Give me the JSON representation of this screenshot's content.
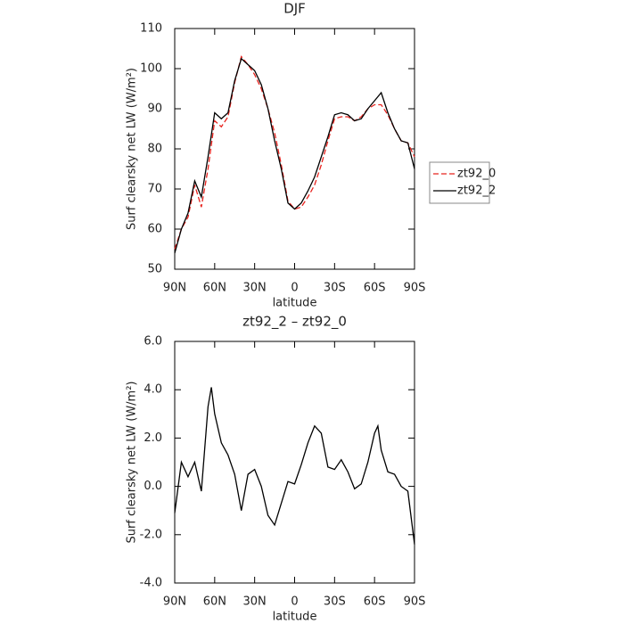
{
  "chart_data": [
    {
      "type": "line",
      "title": "DJF",
      "xlabel": "latitude",
      "ylabel": "Surf clearsky net LW (W/m²)",
      "x": [
        90,
        85,
        80,
        75,
        70,
        65,
        60,
        55,
        50,
        45,
        40,
        35,
        30,
        25,
        20,
        15,
        10,
        5,
        0,
        -5,
        -10,
        -15,
        -20,
        -25,
        -30,
        -35,
        -40,
        -45,
        -50,
        -55,
        -60,
        -65,
        -70,
        -75,
        -80,
        -85,
        -90
      ],
      "series": [
        {
          "name": "zt92_0",
          "color": "#e8241f",
          "linestyle": "dashed",
          "values": [
            55,
            60,
            63,
            71,
            65.5,
            75,
            87,
            85.5,
            88,
            96.5,
            103,
            101,
            98.5,
            95,
            90,
            84,
            76,
            67,
            65,
            65.5,
            68,
            71,
            76,
            82,
            87.5,
            88,
            88,
            87,
            88,
            90,
            91,
            91,
            88.5,
            85,
            82,
            81.5,
            78
          ]
        },
        {
          "name": "zt92_2",
          "color": "#000000",
          "linestyle": "solid",
          "values": [
            54,
            60,
            64,
            72,
            68,
            78,
            89,
            87.5,
            89,
            97,
            102.5,
            101,
            99.5,
            96,
            90,
            82,
            75,
            66.5,
            65,
            66.5,
            69.5,
            73,
            78,
            83,
            88.5,
            89,
            88.5,
            87,
            87.5,
            90,
            92,
            94,
            89,
            85,
            82,
            81.5,
            75
          ]
        }
      ],
      "xlim": [
        90,
        -90
      ],
      "xticks": [
        {
          "value": 90,
          "label": "90N"
        },
        {
          "value": 60,
          "label": "60N"
        },
        {
          "value": 30,
          "label": "30N"
        },
        0,
        {
          "value": -30,
          "label": "30S"
        },
        {
          "value": -60,
          "label": "60S"
        },
        {
          "value": -90,
          "label": "90S"
        }
      ],
      "ylim": [
        50,
        110
      ],
      "yticks": [
        50,
        60,
        70,
        80,
        90,
        100,
        110
      ],
      "legend": "outside-right"
    },
    {
      "type": "line",
      "title": "zt92_2 – zt92_0",
      "xlabel": "latitude",
      "ylabel": "Surf clearsky net LW (W/m²)",
      "x": [
        90,
        85,
        80,
        75,
        70,
        65,
        62.5,
        60,
        55,
        50,
        45,
        40,
        35,
        30,
        25,
        20,
        15,
        10,
        5,
        0,
        -5,
        -10,
        -15,
        -20,
        -25,
        -30,
        -35,
        -40,
        -45,
        -50,
        -55,
        -60,
        -62.5,
        -65,
        -70,
        -75,
        -80,
        -85,
        -90
      ],
      "values": [
        -1.1,
        1.0,
        0.4,
        1.0,
        -0.2,
        3.3,
        4.1,
        3.0,
        1.8,
        1.3,
        0.5,
        -1.0,
        0.5,
        0.7,
        0.0,
        -1.2,
        -1.6,
        -0.7,
        0.2,
        0.1,
        0.9,
        1.8,
        2.5,
        2.2,
        0.8,
        0.7,
        1.1,
        0.6,
        -0.1,
        0.1,
        1.0,
        2.2,
        2.5,
        1.5,
        0.6,
        0.5,
        0.0,
        -0.2,
        -2.4
      ],
      "color": "#000000",
      "xlim": [
        90,
        -90
      ],
      "xticks": [
        {
          "value": 90,
          "label": "90N"
        },
        {
          "value": 60,
          "label": "60N"
        },
        {
          "value": 30,
          "label": "30N"
        },
        0,
        {
          "value": -30,
          "label": "30S"
        },
        {
          "value": -60,
          "label": "60S"
        },
        {
          "value": -90,
          "label": "90S"
        }
      ],
      "ylim": [
        -4,
        6
      ],
      "yticks": [
        {
          "value": -4,
          "label": "-4.0"
        },
        {
          "value": -2,
          "label": "-2.0"
        },
        {
          "value": 0,
          "label": "0.0"
        },
        {
          "value": 2,
          "label": "2.0"
        },
        {
          "value": 4,
          "label": "4.0"
        },
        {
          "value": 6,
          "label": "6.0"
        }
      ]
    }
  ]
}
